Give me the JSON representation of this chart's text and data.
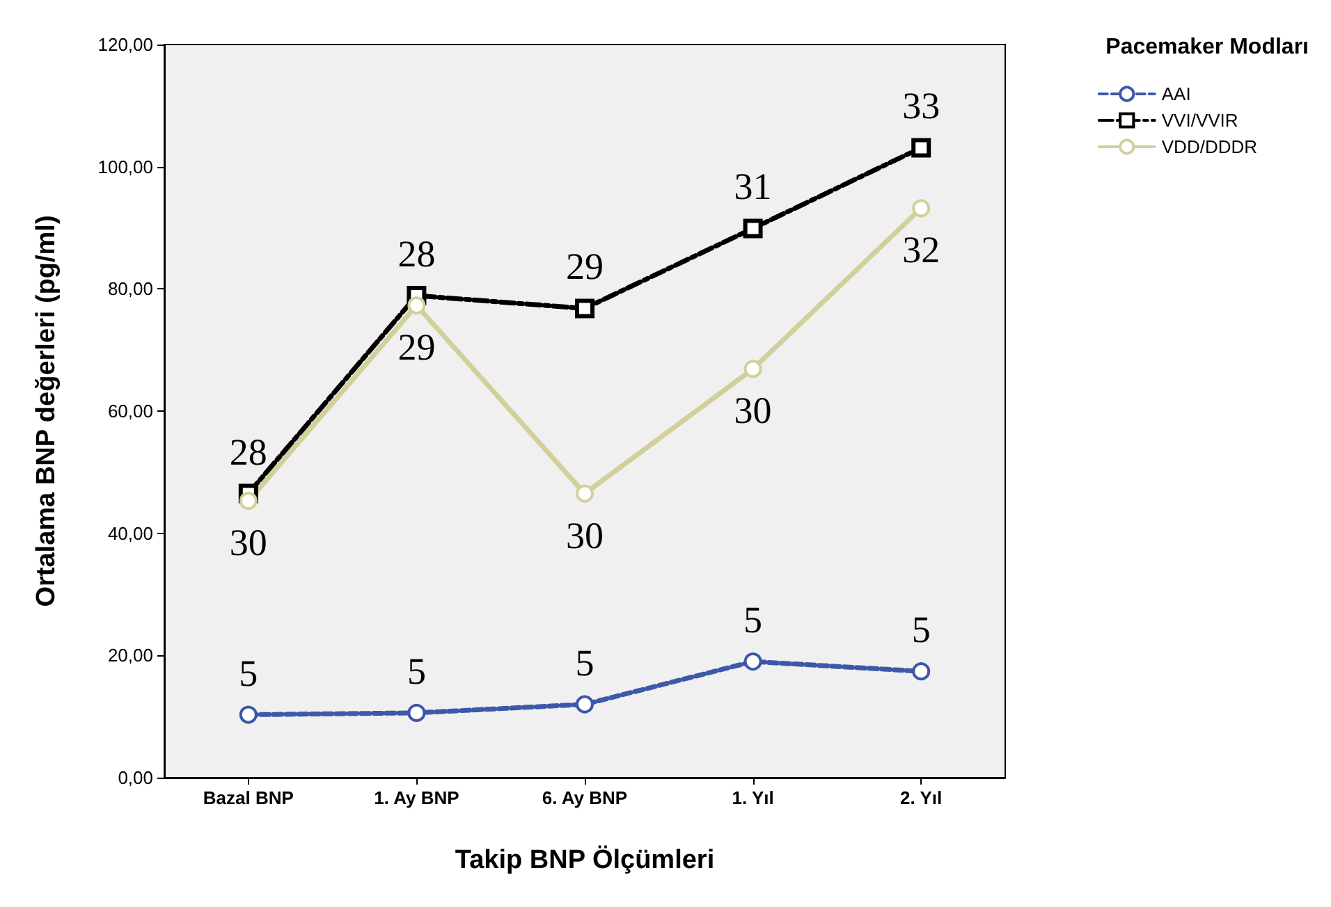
{
  "chart_data": {
    "type": "line",
    "xlabel": "Takip BNP Ölçümleri",
    "ylabel": "Ortalama BNP değerleri (pg/ml)",
    "legend_title": "Pacemaker Modları",
    "categories": [
      "Bazal BNP",
      "1. Ay BNP",
      "6. Ay BNP",
      "1. Yıl",
      "2. Yıl"
    ],
    "series": [
      {
        "name": "AAI",
        "color": "#3d58a8",
        "marker": "circle",
        "line_style": "dotted",
        "values": [
          10.3,
          10.6,
          12.0,
          19.0,
          17.4
        ]
      },
      {
        "name": "VVI/VVIR",
        "color": "#000000",
        "marker": "square",
        "line_style": "dashed",
        "values": [
          46.5,
          78.9,
          76.8,
          89.9,
          103.1
        ]
      },
      {
        "name": "VDD/DDDR",
        "color": "#d3cf9b",
        "marker": "circle",
        "line_style": "solid",
        "values": [
          45.3,
          77.3,
          46.5,
          66.9,
          93.2
        ]
      }
    ],
    "ylim": [
      0,
      120
    ],
    "yticks": [
      {
        "value": 0,
        "label": "0,00"
      },
      {
        "value": 20,
        "label": "20,00"
      },
      {
        "value": 40,
        "label": "40,00"
      },
      {
        "value": 60,
        "label": "60,00"
      },
      {
        "value": 80,
        "label": "80,00"
      },
      {
        "value": 100,
        "label": "100,00"
      },
      {
        "value": 120,
        "label": "120,00"
      }
    ],
    "grid": false,
    "legend": "top right",
    "annotations": [
      {
        "text": "28",
        "x": "Bazal BNP",
        "y": 46.5
      },
      {
        "text": "30",
        "x": "Bazal BNP",
        "y": 45.3
      },
      {
        "text": "5",
        "x": "Bazal BNP",
        "y": 10.3
      },
      {
        "text": "28",
        "x": "1. Ay BNP",
        "y": 78.9
      },
      {
        "text": "29",
        "x": "1. Ay BNP",
        "y": 77.3
      },
      {
        "text": "5",
        "x": "1. Ay BNP",
        "y": 10.6
      },
      {
        "text": "29",
        "x": "6. Ay BNP",
        "y": 76.8
      },
      {
        "text": "30",
        "x": "6. Ay BNP",
        "y": 46.5
      },
      {
        "text": "5",
        "x": "6. Ay BNP",
        "y": 12.0
      },
      {
        "text": "31",
        "x": "1. Yıl",
        "y": 89.9
      },
      {
        "text": "30",
        "x": "1. Yıl",
        "y": 66.9
      },
      {
        "text": "5",
        "x": "1. Yıl",
        "y": 19.0
      },
      {
        "text": "33",
        "x": "2. Yıl",
        "y": 103.1
      },
      {
        "text": "32",
        "x": "2. Yıl",
        "y": 93.2
      },
      {
        "text": "5",
        "x": "2. Yıl",
        "y": 17.4
      }
    ]
  }
}
